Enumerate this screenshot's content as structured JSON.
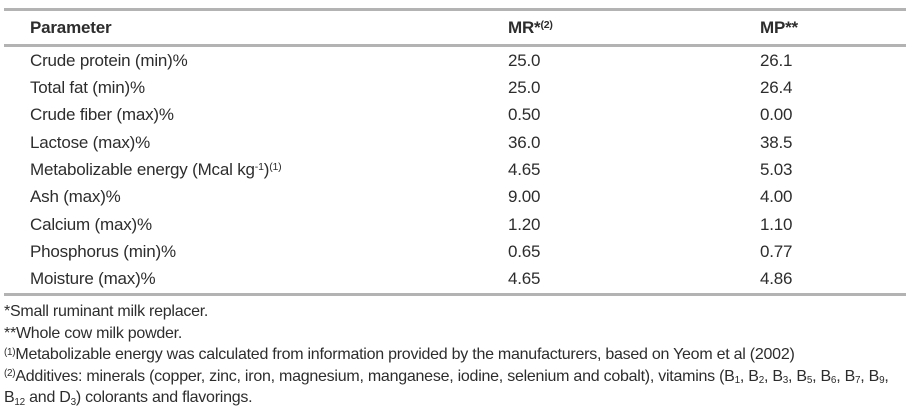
{
  "table": {
    "columns": [
      {
        "label": "Parameter"
      },
      {
        "label_base": "MR*",
        "label_sup": "(2)"
      },
      {
        "label": "MP**"
      }
    ],
    "rows": [
      {
        "parameter": [
          {
            "t": "Crude protein (min)%"
          }
        ],
        "mr": "25.0",
        "mp": "26.1"
      },
      {
        "parameter": [
          {
            "t": "Total fat (min)%"
          }
        ],
        "mr": "25.0",
        "mp": "26.4"
      },
      {
        "parameter": [
          {
            "t": "Crude fiber (max)%"
          }
        ],
        "mr": "0.50",
        "mp": "0.00"
      },
      {
        "parameter": [
          {
            "t": "Lactose (max)%"
          }
        ],
        "mr": "36.0",
        "mp": "38.5"
      },
      {
        "parameter": [
          {
            "t": "Metabolizable energy (Mcal kg"
          },
          {
            "sup": "-1"
          },
          {
            "t": ")"
          },
          {
            "sup": "(1)"
          }
        ],
        "mr": "4.65",
        "mp": "5.03"
      },
      {
        "parameter": [
          {
            "t": "Ash (max)%"
          }
        ],
        "mr": "9.00",
        "mp": "4.00"
      },
      {
        "parameter": [
          {
            "t": "Calcium (max)%"
          }
        ],
        "mr": "1.20",
        "mp": "1.10"
      },
      {
        "parameter": [
          {
            "t": "Phosphorus (min)%"
          }
        ],
        "mr": "0.65",
        "mp": "0.77"
      },
      {
        "parameter": [
          {
            "t": "Moisture (max)%"
          }
        ],
        "mr": "4.65",
        "mp": "4.86"
      }
    ]
  },
  "footnotes": [
    [
      {
        "t": "*Small ruminant milk replacer."
      }
    ],
    [
      {
        "t": "**Whole cow milk powder."
      }
    ],
    [
      {
        "sup": "(1)"
      },
      {
        "t": "Metabolizable energy was calculated from information provided by the manufacturers, based on Yeom et al (2002)"
      }
    ],
    [
      {
        "sup": "(2)"
      },
      {
        "t": "Additives: minerals (copper, zinc, iron, magnesium, manganese, iodine, selenium and cobalt), vitamins (B"
      },
      {
        "sub": "1"
      },
      {
        "t": ", B"
      },
      {
        "sub": "2"
      },
      {
        "t": ", B"
      },
      {
        "sub": "3"
      },
      {
        "t": ", B"
      },
      {
        "sub": "5"
      },
      {
        "t": ", B"
      },
      {
        "sub": "6"
      },
      {
        "t": ", B"
      },
      {
        "sub": "7"
      },
      {
        "t": ", B"
      },
      {
        "sub": "9"
      },
      {
        "t": ", B"
      },
      {
        "sub": "12"
      },
      {
        "t": " and D"
      },
      {
        "sub": "3"
      },
      {
        "t": ") colorants and flavorings."
      }
    ]
  ],
  "colors": {
    "rule": "#b3b3b3",
    "text": "#2d2d2d",
    "background": "#ffffff"
  }
}
